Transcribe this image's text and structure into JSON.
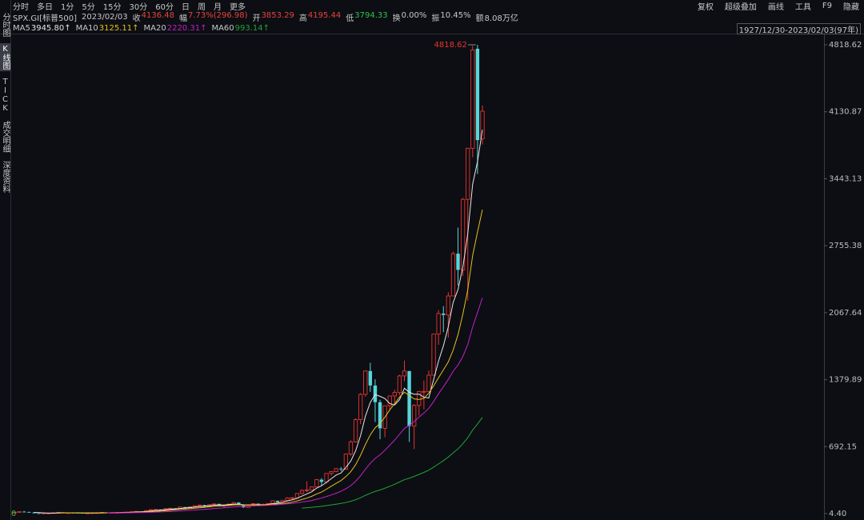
{
  "toolbar": {
    "left": [
      "分时",
      "多日",
      "1分",
      "5分",
      "15分",
      "30分",
      "60分",
      "日",
      "周",
      "月",
      "更多"
    ],
    "right": [
      "复权",
      "超级叠加",
      "画线",
      "工具",
      "F9",
      "隐藏"
    ]
  },
  "quote": {
    "symbol": "SPX.GI[标普500]",
    "date": "2023/02/03",
    "fields": [
      {
        "label": "收",
        "value": "4136.48",
        "color": "#e8423c"
      },
      {
        "label": "幅",
        "value": "7.73%(296.98)",
        "color": "#e8423c"
      },
      {
        "label": "开",
        "value": "3853.29",
        "color": "#e8423c"
      },
      {
        "label": "高",
        "value": "4195.44",
        "color": "#e8423c"
      },
      {
        "label": "低",
        "value": "3794.33",
        "color": "#2cc24a"
      },
      {
        "label": "换",
        "value": "0.00%",
        "color": "#c8c8c8"
      },
      {
        "label": "振",
        "value": "10.45%",
        "color": "#c8c8c8"
      },
      {
        "label": "额",
        "value": "8.08万亿",
        "color": "#c8c8c8"
      }
    ]
  },
  "range": "1927/12/30-2023/02/03(97年)",
  "sidebar": {
    "items": [
      "分时图",
      "K线图",
      "TICK",
      "成交明细",
      "深度资料"
    ],
    "active": 1
  },
  "chart_data": {
    "type": "candlestick",
    "up_color": "#e8342f",
    "down_color": "#57d6da",
    "bottom_label": "0",
    "ylim": [
      4.4,
      4818.62
    ],
    "yticks": [
      {
        "value": 4.4,
        "label": "4.40"
      },
      692.15,
      1379.89,
      2067.64,
      2755.38,
      3443.13,
      4130.87,
      4818.62
    ],
    "open": [
      13,
      18,
      24,
      21,
      15,
      8,
      7,
      10,
      10,
      13,
      17,
      11,
      13,
      12,
      11,
      9,
      10,
      12,
      13,
      17,
      15,
      15,
      15,
      17,
      20,
      24,
      27,
      25,
      36,
      45,
      47,
      40,
      55,
      60,
      58,
      72,
      63,
      75,
      85,
      92,
      80,
      96,
      104,
      92,
      92,
      102,
      118,
      98,
      69,
      90,
      107,
      95,
      96,
      108,
      136,
      123,
      141,
      165,
      167,
      211,
      242,
      247,
      278,
      353,
      330,
      417,
      436,
      466,
      459,
      616,
      741,
      970,
      1229,
      1469,
      1320,
      1148,
      880,
      1112,
      1212,
      1248,
      1418,
      1468,
      903,
      1115,
      1258,
      1258,
      1426,
      1848,
      2059,
      2044,
      2239,
      2674,
      2507,
      3231,
      3756,
      4778,
      3853.29
    ],
    "high": [
      19,
      26,
      32,
      25,
      18,
      9,
      12,
      12,
      14,
      18,
      19,
      14,
      14,
      13,
      11,
      10,
      12,
      14,
      17,
      19,
      16,
      17,
      17,
      20,
      24,
      27,
      27,
      36,
      46,
      50,
      50,
      56,
      61,
      61,
      73,
      72,
      76,
      87,
      93,
      95,
      98,
      109,
      107,
      94,
      105,
      120,
      121,
      100,
      96,
      108,
      107,
      107,
      112,
      141,
      139,
      144,
      173,
      171,
      213,
      254,
      337,
      284,
      360,
      369,
      419,
      442,
      471,
      482,
      622,
      758,
      983,
      1242,
      1475,
      1553,
      1384,
      1173,
      1114,
      1217,
      1276,
      1431,
      1576,
      1471,
      1130,
      1263,
      1371,
      1474,
      1850,
      2094,
      2135,
      2278,
      2695,
      2941,
      3248,
      3760,
      4808,
      4818.62,
      4195.44
    ],
    "low": [
      12,
      17,
      17,
      14,
      7,
      4.4,
      5,
      8,
      8,
      13,
      10,
      9,
      10,
      9,
      8,
      7,
      9,
      12,
      13,
      14,
      14,
      14,
      14,
      16,
      20,
      23,
      22,
      25,
      35,
      43,
      38,
      40,
      54,
      52,
      57,
      52,
      62,
      75,
      82,
      73,
      79,
      87,
      89,
      69,
      90,
      101,
      92,
      62,
      70,
      90,
      90,
      87,
      97,
      98,
      112,
      102,
      139,
      147,
      163,
      203,
      224,
      243,
      275,
      295,
      312,
      395,
      429,
      439,
      459,
      598,
      733,
      923,
      1205,
      1254,
      945,
      768,
      789,
      1061,
      1137,
      1220,
      1364,
      741,
      667,
      1011,
      1075,
      1258,
      1426,
      1738,
      1867,
      1810,
      2239,
      2347,
      2444,
      2192,
      3663,
      3491.58,
      3794.33
    ],
    "close": [
      18,
      24,
      21,
      15,
      8,
      7,
      10,
      10,
      13,
      17,
      11,
      13,
      12,
      11,
      9,
      10,
      12,
      13,
      17,
      15,
      15,
      15,
      17,
      20,
      24,
      27,
      25,
      36,
      45,
      47,
      40,
      55,
      60,
      58,
      72,
      63,
      75,
      85,
      92,
      80,
      96,
      104,
      92,
      92,
      102,
      118,
      98,
      69,
      90,
      107,
      95,
      96,
      108,
      136,
      123,
      141,
      165,
      167,
      211,
      242,
      247,
      278,
      353,
      330,
      417,
      436,
      466,
      459,
      616,
      741,
      970,
      1229,
      1469,
      1320,
      1148,
      880,
      1112,
      1212,
      1248,
      1418,
      1468,
      903,
      1115,
      1258,
      1258,
      1426,
      1848,
      2059,
      2044,
      2239,
      2674,
      2507,
      3231,
      3756,
      4766,
      3839.5,
      4136.48
    ],
    "series": [
      {
        "name": "MA5",
        "color": "#e6e6e6",
        "last_label": "3945.80↑",
        "values": [
          null,
          null,
          null,
          null,
          17,
          15,
          12,
          10,
          10,
          11,
          12,
          13,
          13,
          13,
          11,
          11,
          11,
          11,
          12,
          13,
          14,
          15,
          16,
          16,
          18,
          21,
          23,
          26,
          31,
          36,
          39,
          45,
          49,
          52,
          57,
          62,
          66,
          71,
          77,
          79,
          86,
          91,
          93,
          93,
          97,
          102,
          100,
          96,
          95,
          96,
          92,
          91,
          99,
          108,
          112,
          121,
          135,
          146,
          161,
          185,
          206,
          229,
          266,
          290,
          325,
          363,
          400,
          422,
          479,
          544,
          650,
          803,
          1005,
          1146,
          1227,
          1209,
          1186,
          1134,
          1120,
          1174,
          1292,
          1250,
          1230,
          1232,
          1200,
          1192,
          1381,
          1570,
          1727,
          1923,
          2173,
          2305,
          2539,
          2881,
          3387,
          3620,
          3945.8
        ]
      },
      {
        "name": "MA10",
        "color": "#e5c01f",
        "last_label": "3125.11↑",
        "values": [
          null,
          null,
          null,
          null,
          null,
          null,
          null,
          null,
          null,
          14,
          14,
          13,
          12,
          12,
          11,
          12,
          12,
          12,
          12,
          12,
          13,
          13,
          14,
          14,
          16,
          18,
          19,
          21,
          24,
          27,
          30,
          34,
          38,
          42,
          47,
          51,
          56,
          60,
          65,
          68,
          74,
          79,
          82,
          85,
          88,
          94,
          96,
          95,
          94,
          97,
          97,
          96,
          98,
          102,
          104,
          107,
          113,
          123,
          135,
          149,
          164,
          182,
          206,
          226,
          255,
          285,
          315,
          344,
          385,
          435,
          507,
          602,
          714,
          813,
          886,
          930,
          995,
          1070,
          1133,
          1201,
          1251,
          1218,
          1182,
          1176,
          1187,
          1242,
          1316,
          1400,
          1480,
          1562,
          1683,
          1843,
          2055,
          2304,
          2655,
          2897,
          3125.11
        ]
      },
      {
        "name": "MA20",
        "color": "#c61fc8",
        "last_label": "2220.31↑",
        "values": [
          null,
          null,
          null,
          null,
          null,
          null,
          null,
          null,
          null,
          null,
          null,
          null,
          null,
          null,
          null,
          null,
          null,
          null,
          null,
          13,
          14,
          13,
          13,
          13,
          14,
          15,
          16,
          17,
          18,
          20,
          22,
          24,
          26,
          28,
          32,
          35,
          38,
          41,
          45,
          48,
          52,
          57,
          60,
          64,
          68,
          73,
          76,
          78,
          80,
          83,
          86,
          88,
          90,
          94,
          96,
          101,
          105,
          109,
          115,
          123,
          131,
          139,
          152,
          164,
          180,
          196,
          214,
          234,
          260,
          292,
          336,
          392,
          460,
          520,
          571,
          608,
          655,
          707,
          759,
          818,
          879,
          910,
          948,
          995,
          1037,
          1086,
          1156,
          1235,
          1307,
          1382,
          1467,
          1531,
          1619,
          1740,
          1921,
          2070,
          2220.31
        ]
      },
      {
        "name": "MA60",
        "color": "#22a336",
        "last_label": "993.14↑",
        "values": [
          null,
          null,
          null,
          null,
          null,
          null,
          null,
          null,
          null,
          null,
          null,
          null,
          null,
          null,
          null,
          null,
          null,
          null,
          null,
          null,
          null,
          null,
          null,
          null,
          null,
          null,
          null,
          null,
          null,
          null,
          null,
          null,
          null,
          null,
          null,
          null,
          null,
          null,
          null,
          null,
          null,
          null,
          null,
          null,
          null,
          null,
          null,
          null,
          null,
          null,
          null,
          null,
          null,
          null,
          null,
          null,
          null,
          null,
          null,
          61,
          64.8,
          69,
          74.5,
          79.8,
          86.6,
          93.7,
          101.3,
          108.8,
          118.9,
          130.9,
          146.9,
          167.2,
          191.5,
          213.3,
          232.3,
          246.8,
          265.1,
          285.1,
          305.6,
          329,
          353.2,
          368,
          386.3,
          406.9,
          427.5,
          450.8,
          481.2,
          514.9,
          548.2,
          584.7,
          628.6,
          669.5,
          722.4,
          784,
          862.2,
          925.2,
          993.14
        ]
      }
    ]
  }
}
